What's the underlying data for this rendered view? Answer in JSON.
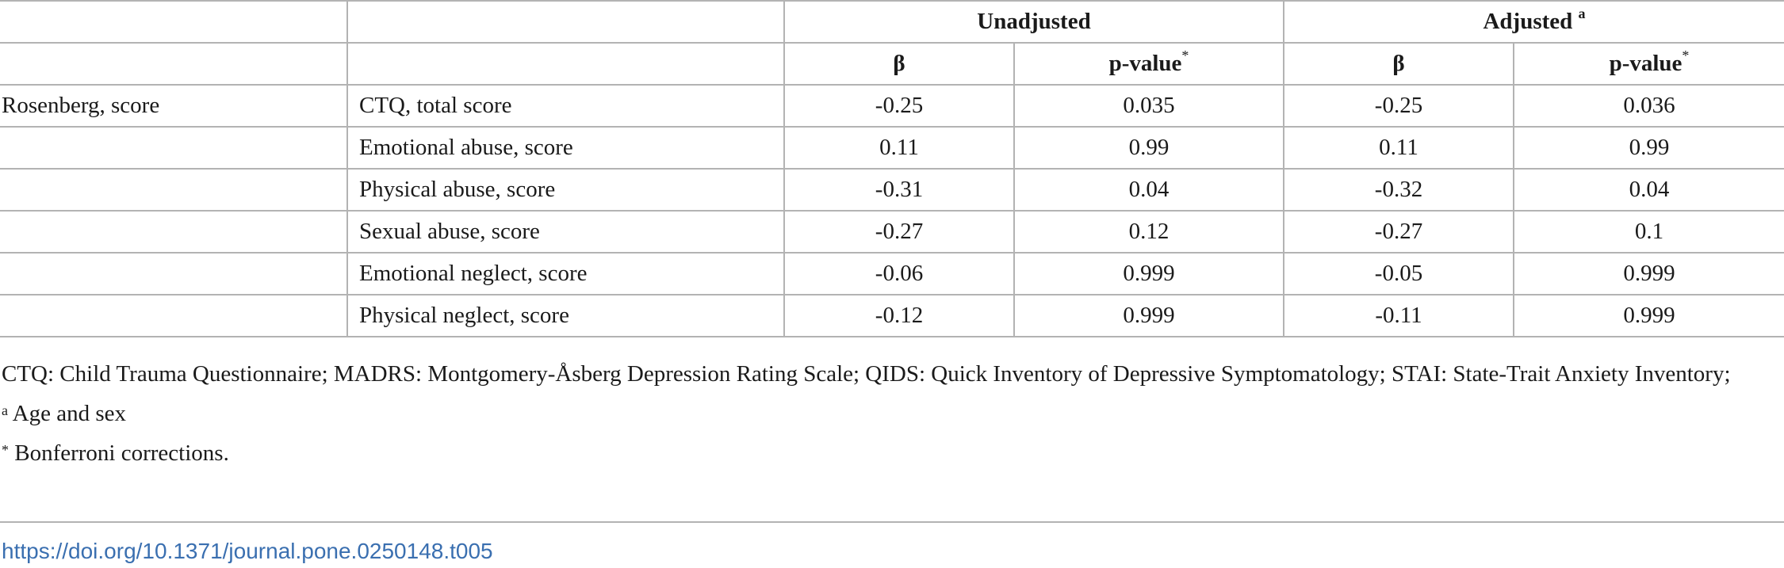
{
  "table": {
    "groups": {
      "unadjusted": "Unadjusted",
      "adjusted": "Adjusted",
      "adjusted_sup": "a"
    },
    "columns": {
      "beta_unadj": "β",
      "p_unadj": "p-value",
      "p_unadj_sup": "*",
      "beta_adj": "β",
      "p_adj": "p-value",
      "p_adj_sup": "*"
    },
    "outcome": "Rosenberg, score",
    "rows": [
      {
        "predictor": "CTQ, total score",
        "beta_unadj": "-0.25",
        "p_unadj": "0.035",
        "beta_adj": "-0.25",
        "p_adj": "0.036"
      },
      {
        "predictor": "Emotional abuse, score",
        "beta_unadj": "0.11",
        "p_unadj": "0.99",
        "beta_adj": "0.11",
        "p_adj": "0.99"
      },
      {
        "predictor": "Physical abuse, score",
        "beta_unadj": "-0.31",
        "p_unadj": "0.04",
        "beta_adj": "-0.32",
        "p_adj": "0.04"
      },
      {
        "predictor": "Sexual abuse, score",
        "beta_unadj": "-0.27",
        "p_unadj": "0.12",
        "beta_adj": "-0.27",
        "p_adj": "0.1"
      },
      {
        "predictor": "Emotional neglect, score",
        "beta_unadj": "-0.06",
        "p_unadj": "0.999",
        "beta_adj": "-0.05",
        "p_adj": "0.999"
      },
      {
        "predictor": "Physical neglect, score",
        "beta_unadj": "-0.12",
        "p_unadj": "0.999",
        "beta_adj": "-0.11",
        "p_adj": "0.999"
      }
    ]
  },
  "notes": {
    "abbreviations": "CTQ: Child Trauma Questionnaire; MADRS: Montgomery-Åsberg Depression Rating Scale; QIDS: Quick Inventory of Depressive Symptomatology; STAI: State-Trait Anxiety Inventory;",
    "footnote_a_mark": "a",
    "footnote_a": "Age and sex",
    "footnote_star_mark": "*",
    "footnote_star": "Bonferroni corrections."
  },
  "doi": "https://doi.org/10.1371/journal.pone.0250148.t005"
}
